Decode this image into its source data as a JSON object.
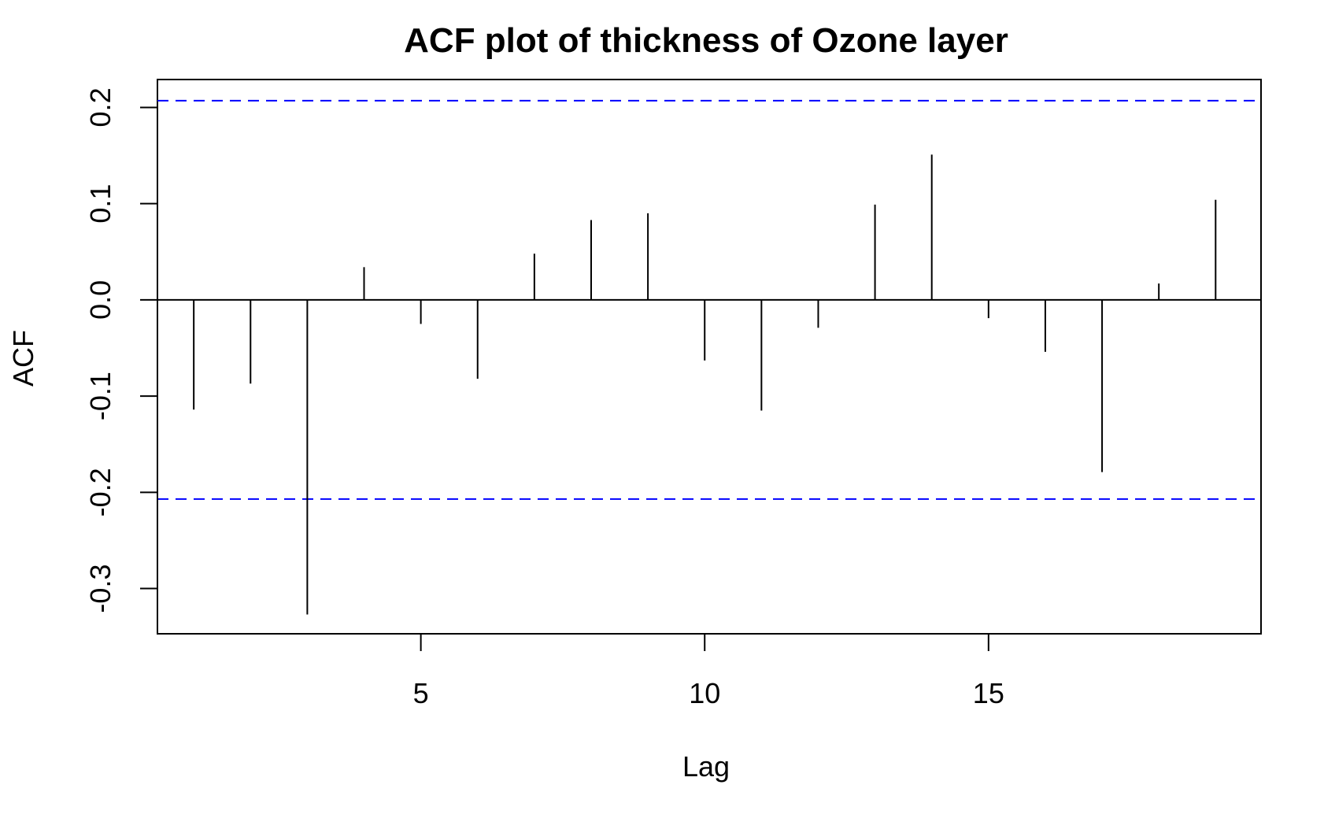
{
  "chart_data": {
    "type": "bar",
    "title": "ACF plot of thickness of Ozone layer",
    "xlabel": "Lag",
    "ylabel": "ACF",
    "xlim": [
      0.36,
      19.8
    ],
    "ylim": [
      -0.347,
      0.229
    ],
    "x_ticks": [
      5,
      10,
      15
    ],
    "x_tick_labels": [
      "5",
      "10",
      "15"
    ],
    "y_ticks": [
      -0.3,
      -0.2,
      -0.1,
      0.0,
      0.1,
      0.2
    ],
    "y_tick_labels": [
      "-0.3",
      "-0.2",
      "-0.1",
      "0.0",
      "0.1",
      "0.2"
    ],
    "confidence_bound": 0.207,
    "series": [
      {
        "x": [
          1,
          2,
          3,
          4,
          5,
          6,
          7,
          8,
          9,
          10,
          11,
          12,
          13,
          14,
          15,
          16,
          17,
          18,
          19
        ],
        "values": [
          -0.114,
          -0.087,
          -0.327,
          0.034,
          -0.025,
          -0.082,
          0.048,
          0.083,
          0.09,
          -0.063,
          -0.115,
          -0.029,
          0.099,
          0.151,
          -0.019,
          -0.054,
          -0.179,
          0.017,
          0.104
        ]
      }
    ],
    "colors": {
      "bars": "#000000",
      "bounds": "#0000ff",
      "axes": "#000000"
    },
    "grid": false
  }
}
